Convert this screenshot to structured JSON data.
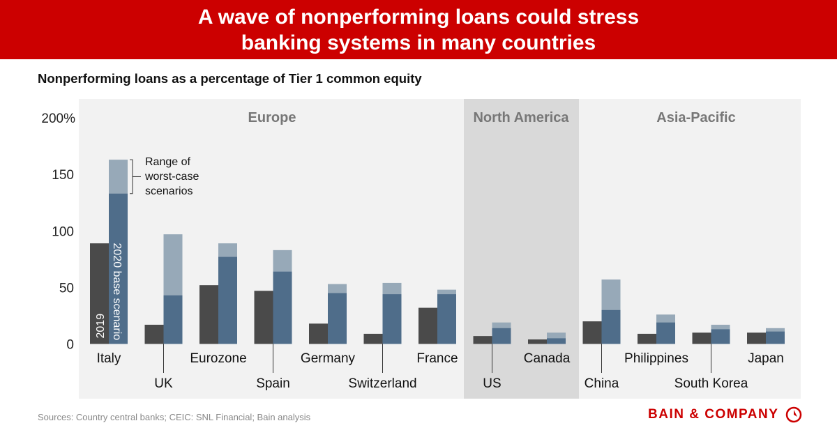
{
  "header": {
    "title_line1": "A wave of nonperforming loans could stress",
    "title_line2": "banking systems in many countries"
  },
  "chart_data": {
    "type": "bar",
    "title": "Nonperforming loans as a percentage of Tier 1 common equity",
    "ylabel": "",
    "xlabel": "",
    "ylim": [
      0,
      200
    ],
    "yticks": [
      {
        "v": 0,
        "label": "0"
      },
      {
        "v": 50,
        "label": "50"
      },
      {
        "v": 100,
        "label": "100"
      },
      {
        "v": 150,
        "label": "150"
      },
      {
        "v": 200,
        "label": "200%"
      }
    ],
    "regions": [
      {
        "name": "Europe",
        "from": 0,
        "to": 6
      },
      {
        "name": "North America",
        "from": 7,
        "to": 8
      },
      {
        "name": "Asia-Pacific",
        "from": 9,
        "to": 12
      }
    ],
    "categories": [
      "Italy",
      "UK",
      "Eurozone",
      "Spain",
      "Germany",
      "Switzerland",
      "France",
      "US",
      "Canada",
      "China",
      "Philippines",
      "South Korea",
      "Japan"
    ],
    "series": [
      {
        "name": "2019",
        "values": [
          89,
          17,
          52,
          47,
          18,
          9,
          32,
          7,
          4,
          20,
          9,
          10,
          10
        ]
      },
      {
        "name": "2020 base scenario",
        "values": [
          133,
          43,
          77,
          64,
          45,
          44,
          44,
          14,
          5,
          30,
          19,
          13,
          11
        ]
      },
      {
        "name": "Range of worst-case scenarios (upper bound)",
        "values": [
          163,
          97,
          89,
          83,
          53,
          54,
          48,
          19,
          10,
          57,
          26,
          17,
          14
        ]
      }
    ],
    "annotation": {
      "line1": "Range of",
      "line2": "worst-case",
      "line3": "scenarios"
    },
    "colors": {
      "y2019": "#4a4a4a",
      "base": "#4f6d8a",
      "worst": "#97a9b8",
      "panel": "#f2f2f2",
      "panel_alt": "#d9d9d9",
      "header": "#cc0000"
    }
  },
  "footer": {
    "sources": "Sources: Country central banks; CEIC: SNL Financial; Bain analysis",
    "brand": "BAIN & COMPANY"
  }
}
